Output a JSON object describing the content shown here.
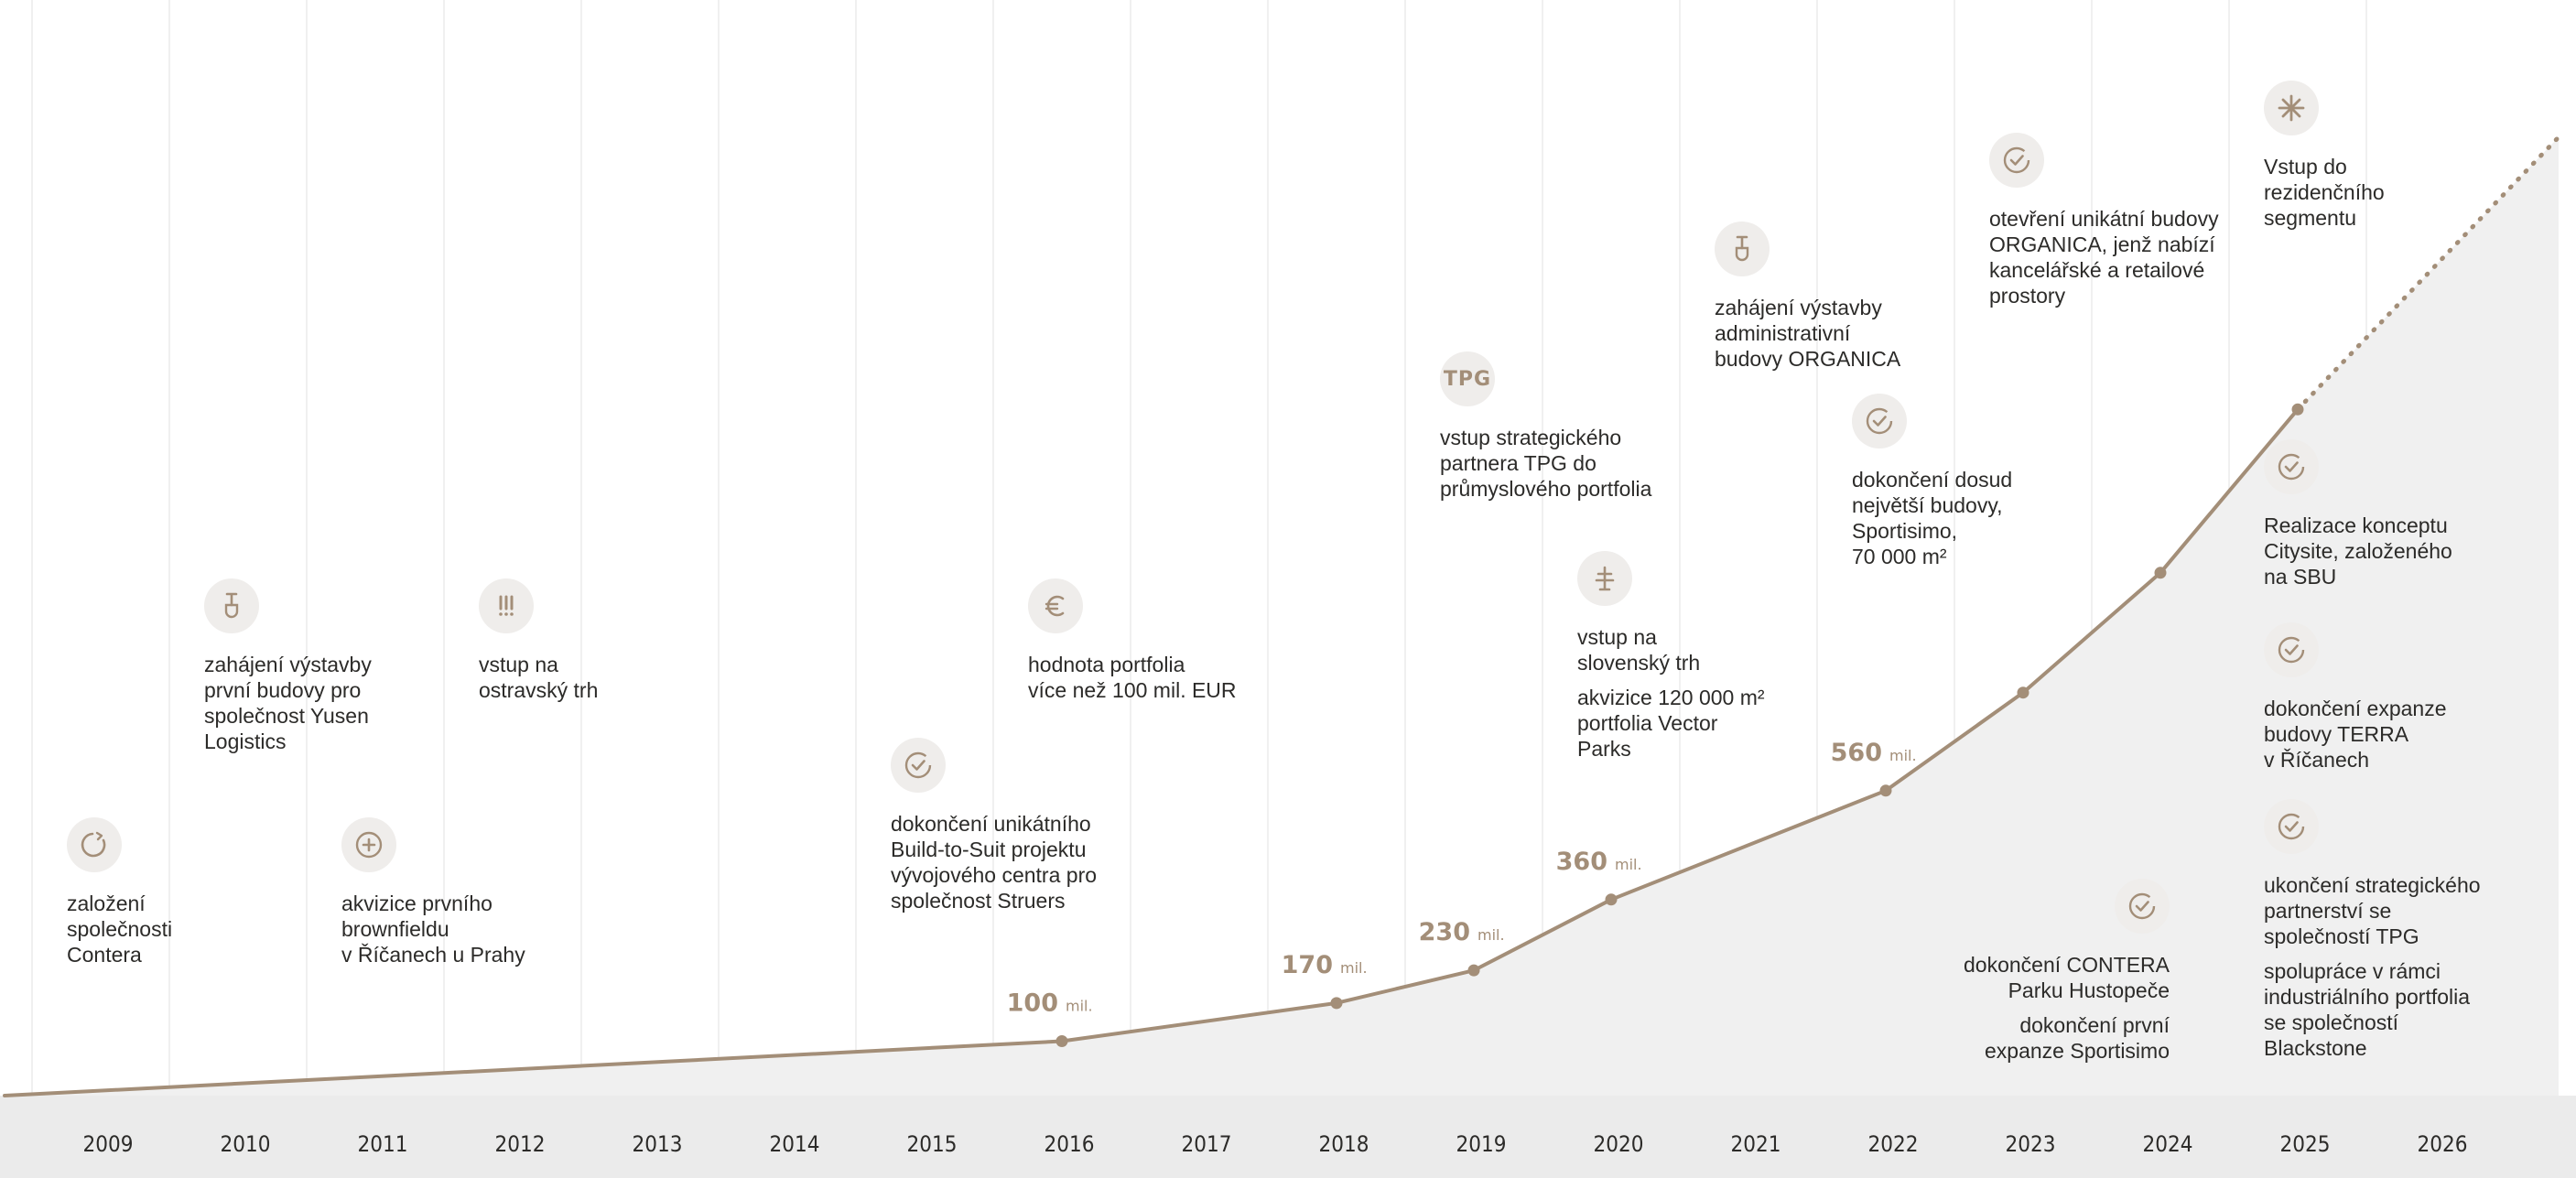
{
  "colors": {
    "line": "#a38e78",
    "area": "#f0f0f0",
    "grid": "#ececec",
    "axis_band": "#ebebeb",
    "icon_bg": "#efedeb",
    "text": "#2c2b29"
  },
  "chart_data": {
    "type": "area",
    "title": "",
    "xlabel": "",
    "ylabel": "",
    "x_ticks": [
      "2009",
      "2010",
      "2011",
      "2012",
      "2013",
      "2014",
      "2015",
      "2016",
      "2017",
      "2018",
      "2019",
      "2020",
      "2021",
      "2022",
      "2023",
      "2024",
      "2025",
      "2026"
    ],
    "series": [
      {
        "style": "solid",
        "points": [
          {
            "x": 2008.3,
            "y": 0
          },
          {
            "x": 2016,
            "y": 100,
            "label": "100",
            "unit": "mil."
          },
          {
            "x": 2018,
            "y": 170,
            "label": "170",
            "unit": "mil."
          },
          {
            "x": 2019,
            "y": 230,
            "label": "230",
            "unit": "mil."
          },
          {
            "x": 2020,
            "y": 360,
            "label": "360",
            "unit": "mil."
          },
          {
            "x": 2022,
            "y": 560,
            "label": "560",
            "unit": "mil."
          },
          {
            "x": 2023,
            "y": 740
          },
          {
            "x": 2024,
            "y": 960
          },
          {
            "x": 2025,
            "y": 1260
          }
        ]
      },
      {
        "style": "dotted",
        "points": [
          {
            "x": 2025,
            "y": 1260
          },
          {
            "x": 2026.9,
            "y": 1760
          }
        ]
      }
    ]
  },
  "events": [
    {
      "id": "e2009",
      "icon": "circle-arrow-icon",
      "x": 2009,
      "row": "low",
      "texts": [
        "založení\nspolečnosti\nContera"
      ]
    },
    {
      "id": "e2010",
      "icon": "shovel-icon",
      "x": 2010,
      "row": "mid",
      "texts": [
        "zahájení výstavby\nprvní budovy pro\nspolečnost Yusen\nLogistics"
      ]
    },
    {
      "id": "e2011",
      "icon": "plus-circle-icon",
      "x": 2011,
      "row": "low",
      "texts": [
        "akvizice prvního\nbrownfieldu\nv Říčanech u Prahy"
      ]
    },
    {
      "id": "e2012",
      "icon": "exclamation-icon",
      "x": 2012,
      "row": "mid",
      "texts": [
        "vstup na\nostravský trh"
      ]
    },
    {
      "id": "e2015",
      "icon": "check-circle-icon",
      "x": 2015,
      "row": "lowmid",
      "texts": [
        "dokončení unikátního\nBuild-to-Suit projektu\nvývojového centra pro\nspolečnost Struers"
      ]
    },
    {
      "id": "e2016",
      "icon": "euro-icon",
      "x": 2016,
      "row": "mid",
      "texts": [
        "hodnota portfolia\nvíce než 100 mil. EUR"
      ]
    },
    {
      "id": "e2019",
      "icon": "tpg-icon",
      "icon_text": "TPG",
      "x": 2019,
      "row": "high",
      "texts": [
        "vstup strategického\npartnera TPG do\nprůmyslového portfolia"
      ]
    },
    {
      "id": "e2020",
      "icon": "tree-icon",
      "x": 2020,
      "row": "mid2",
      "texts": [
        "vstup na\nslovenský trh",
        "akvizice 120 000 m²\nportfolia Vector\nParks"
      ]
    },
    {
      "id": "e2021",
      "icon": "shovel-icon",
      "x": 2021,
      "row": "top2",
      "texts": [
        "zahájení výstavby\nadministrativní\nbudovy ORGANICA"
      ]
    },
    {
      "id": "e2022",
      "icon": "check-circle-icon",
      "x": 2022,
      "row": "high2",
      "texts": [
        "dokončení dosud\nnejvětší budovy,\nSportisimo,\n70 000 m²"
      ]
    },
    {
      "id": "e2023",
      "icon": "check-circle-icon",
      "x": 2023,
      "row": "top",
      "texts": [
        "otevření unikátní budovy\nORGANICA, jenž nabízí\nkancelářské a retailové\nprostory"
      ]
    },
    {
      "id": "e2024",
      "icon": "check-circle-icon",
      "x": 2024,
      "row": "low2",
      "align": "right",
      "texts": [
        "dokončení CONTERA\nParku Hustopeče",
        "dokončení první\nexpanze Sportisimo"
      ]
    },
    {
      "id": "e2025a",
      "icon": "sparkle-icon",
      "x": 2025,
      "row": "top0",
      "texts": [
        "Vstup do\nrezidenčního\nsegmentu"
      ]
    },
    {
      "id": "e2025b",
      "icon": "check-circle-icon",
      "x": 2025,
      "row": "c1",
      "texts": [
        "Realizace konceptu\nCitysite, založeného\nna SBU"
      ]
    },
    {
      "id": "e2025c",
      "icon": "check-circle-icon",
      "x": 2025,
      "row": "c2",
      "texts": [
        "dokončení expanze\nbudovy TERRA\nv Říčanech"
      ]
    },
    {
      "id": "e2025d",
      "icon": "check-circle-icon",
      "x": 2025,
      "row": "c3",
      "texts": [
        "ukončení strategického\npartnerství se\nspolečností TPG",
        "spolupráce v rámci\nindustriálního portfolia\nse společností\nBlackstone"
      ]
    }
  ]
}
